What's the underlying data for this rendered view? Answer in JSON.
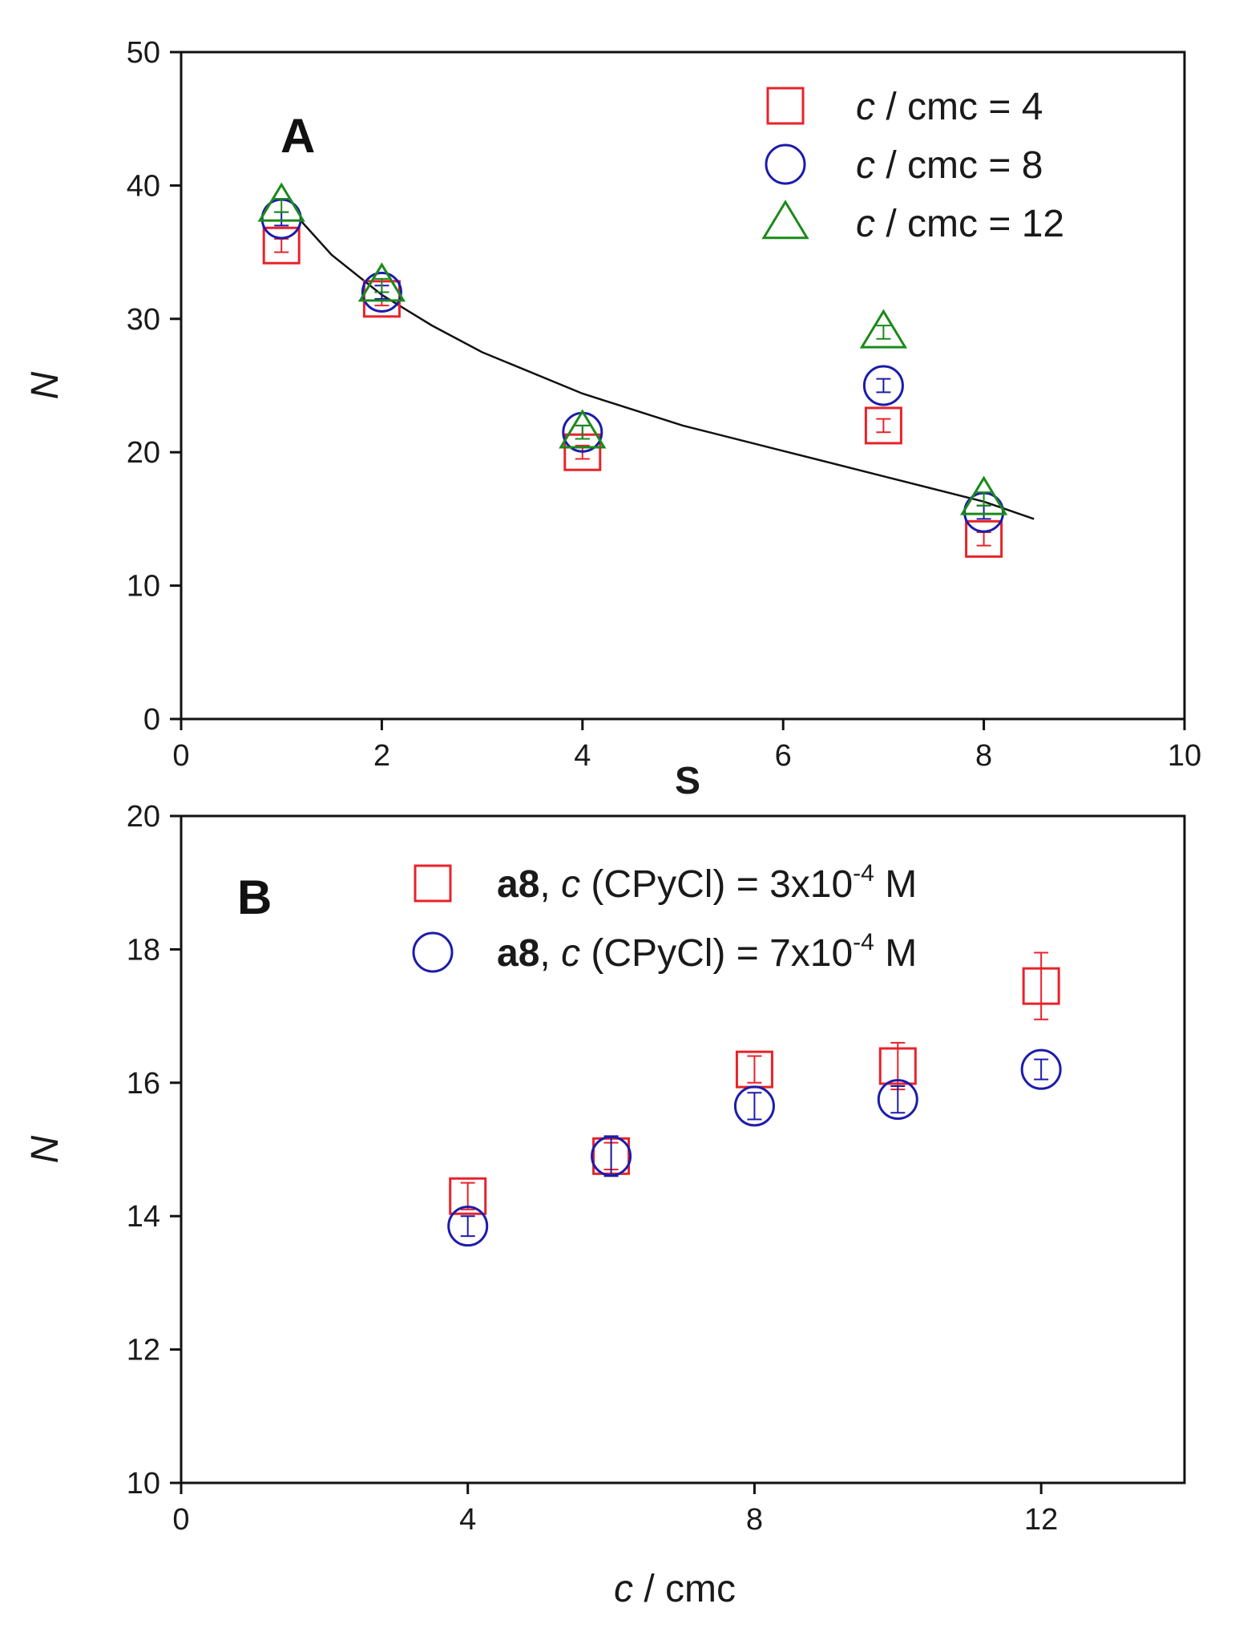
{
  "chart_data": [
    {
      "type": "scatter",
      "panel_label": "A",
      "xlabel": "S",
      "ylabel": "N",
      "xlim": [
        0,
        10
      ],
      "ylim": [
        0,
        50
      ],
      "xticks": [
        0,
        2,
        4,
        6,
        8,
        10
      ],
      "yticks": [
        0,
        10,
        20,
        30,
        40,
        50
      ],
      "grid": false,
      "legend_position": "top-right",
      "series": [
        {
          "name": "c / cmc = 4",
          "legend_italic": "c",
          "legend_rest": " / cmc = 4",
          "marker": "square",
          "color": "#e8232a",
          "x": [
            1,
            2,
            4,
            7,
            8
          ],
          "values": [
            35.5,
            31.5,
            20,
            22,
            13.5
          ],
          "errors": [
            0.5,
            0.5,
            0.5,
            0.5,
            0.5
          ]
        },
        {
          "name": "c / cmc = 8",
          "legend_italic": "c",
          "legend_rest": " / cmc = 8",
          "marker": "circle",
          "color": "#1c1cab",
          "x": [
            1,
            2,
            4,
            7,
            8
          ],
          "values": [
            37.5,
            32,
            21.5,
            25,
            15.5
          ],
          "errors": [
            0.5,
            0.5,
            0.5,
            0.5,
            0.5
          ]
        },
        {
          "name": "c / cmc = 12",
          "legend_italic": "c",
          "legend_rest": " / cmc = 12",
          "marker": "triangle",
          "color": "#1a8a1a",
          "x": [
            1,
            2,
            4,
            7,
            8
          ],
          "values": [
            38.5,
            32.5,
            21.5,
            29,
            16.5
          ],
          "errors": [
            0.5,
            0.5,
            0.5,
            0.5,
            0.5
          ]
        }
      ],
      "fit_line": {
        "color": "#111111",
        "x": [
          1.2,
          1.5,
          2,
          2.5,
          3,
          4,
          5,
          6,
          7,
          8,
          8.5
        ],
        "values": [
          37.3,
          34.8,
          31.8,
          29.5,
          27.5,
          24.4,
          22.0,
          20.1,
          18.2,
          16.3,
          15.0
        ]
      }
    },
    {
      "type": "scatter",
      "panel_label": "B",
      "xlabel": "c / cmc",
      "xlabel_italic": "c",
      "xlabel_rest": " / cmc",
      "ylabel": "N",
      "xlim": [
        0,
        14
      ],
      "ylim": [
        10,
        20
      ],
      "xticks": [
        0,
        4,
        8,
        12
      ],
      "yticks": [
        10,
        12,
        14,
        16,
        18,
        20
      ],
      "grid": false,
      "legend_position": "top-center",
      "series": [
        {
          "name": "a8, c (CPyCl) = 3x10-4 M",
          "legend_bold": "a8",
          "legend_mid": ", ",
          "legend_italic": "c",
          "legend_rest": " (CPyCl) = 3x10",
          "legend_sup": "-4",
          "legend_unit": " M",
          "marker": "square",
          "color": "#e8232a",
          "x": [
            4,
            6,
            8,
            10,
            12
          ],
          "values": [
            14.3,
            14.9,
            16.2,
            16.25,
            17.45
          ],
          "errors": [
            0.2,
            0.2,
            0.2,
            0.35,
            0.5
          ]
        },
        {
          "name": "a8, c (CPyCl) = 7x10-4 M",
          "legend_bold": "a8",
          "legend_mid": ", ",
          "legend_italic": "c",
          "legend_rest": " (CPyCl) = 7x10",
          "legend_sup": "-4",
          "legend_unit": " M",
          "marker": "circle",
          "color": "#1c1cab",
          "x": [
            4,
            6,
            8,
            10,
            12
          ],
          "values": [
            13.85,
            14.9,
            15.65,
            15.75,
            16.2
          ],
          "errors": [
            0.15,
            0.3,
            0.2,
            0.2,
            0.15
          ]
        }
      ]
    }
  ]
}
